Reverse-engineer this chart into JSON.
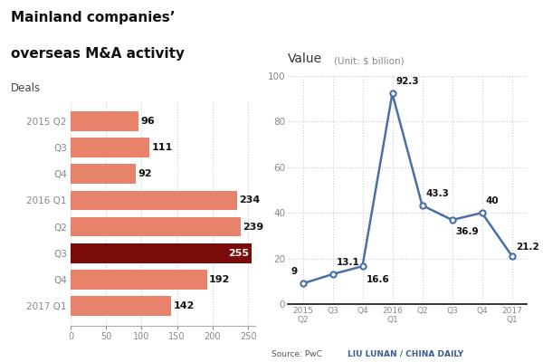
{
  "title_line1": "Mainland companies’",
  "title_line2": "overseas M&A activity",
  "bar_labels": [
    "2015 Q2",
    "Q3",
    "Q4",
    "2016 Q1",
    "Q2",
    "Q3",
    "Q4",
    "2017 Q1"
  ],
  "bar_values": [
    96,
    111,
    92,
    234,
    239,
    255,
    192,
    142
  ],
  "bar_colors": [
    "#E8826A",
    "#E8826A",
    "#E8826A",
    "#E8826A",
    "#E8826A",
    "#7B0A0A",
    "#E8826A",
    "#E8826A"
  ],
  "bar_label_white": [
    false,
    false,
    false,
    false,
    false,
    true,
    false,
    false
  ],
  "deals_label": "Deals",
  "bar_xlim": [
    0,
    260
  ],
  "bar_xticks": [
    0,
    50,
    100,
    150,
    200,
    250
  ],
  "line_title": "Value",
  "line_title_unit": "(Unit: $ billion)",
  "line_x_labels": [
    "2015\nQ2",
    "Q3",
    "Q4",
    "2016\nQ1",
    "Q2",
    "Q3",
    "Q4",
    "2017\nQ1"
  ],
  "line_values": [
    9,
    13.1,
    16.6,
    92.3,
    43.3,
    36.9,
    40,
    21.2
  ],
  "line_color": "#4A6FA5",
  "line_ylim": [
    0,
    100
  ],
  "line_yticks": [
    0,
    20,
    40,
    60,
    80,
    100
  ],
  "source_text": "Source: PwC",
  "credit_text": "LIU LUNAN / CHINA DAILY",
  "bg_color": "#FFFFFF",
  "title_color": "#111111",
  "axis_label_color": "#888888",
  "grid_color": "#CCCCCC"
}
